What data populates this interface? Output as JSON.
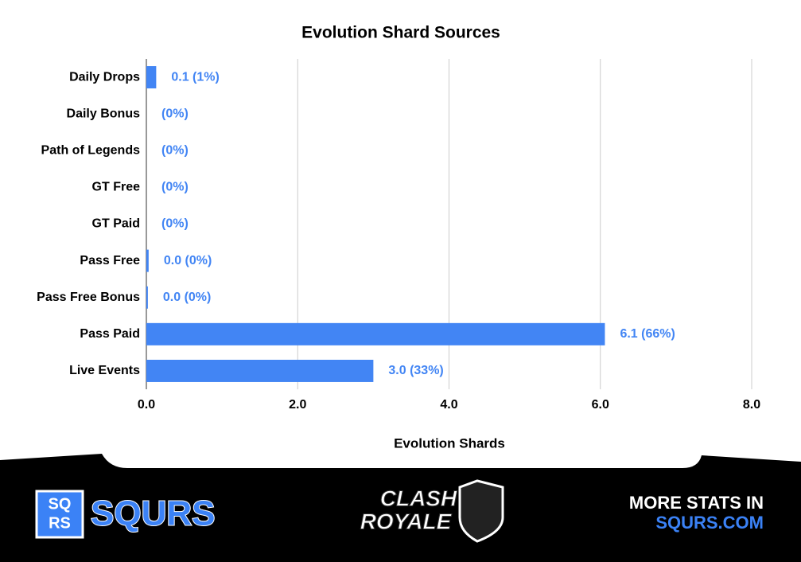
{
  "chart_data": {
    "type": "barh",
    "title": "Evolution Shard Sources",
    "categories": [
      "Daily Drops",
      "Daily Bonus",
      "Path of Legends",
      "GT Free",
      "GT Paid",
      "Pass Free",
      "Pass Free Bonus",
      "Pass Paid",
      "Live Events"
    ],
    "values": [
      0.13,
      0,
      0,
      0,
      0,
      0.03,
      0.02,
      6.06,
      3.0
    ],
    "value_labels": [
      "0.1 (1%)",
      "(0%)",
      "(0%)",
      "(0%)",
      "(0%)",
      "0.0 (0%)",
      "0.0 (0%)",
      "6.1 (66%)",
      "3.0 (33%)"
    ],
    "color": "#4285f4",
    "xlabel": "Evolution Shards",
    "xlim": [
      0,
      8
    ],
    "xticks": [
      {
        "value": 0,
        "label": "0.0"
      },
      {
        "value": 2,
        "label": "2.0"
      },
      {
        "value": 4,
        "label": "4.0"
      },
      {
        "value": 6,
        "label": "6.0"
      },
      {
        "value": 8,
        "label": "8.0"
      }
    ],
    "grid": true
  },
  "footer": {
    "brand_box_top": "SQ",
    "brand_box_bottom": "RS",
    "brand": "SQURS",
    "game_top": "CLASH",
    "game_bottom": "ROYALE",
    "promo_top": "MORE STATS IN",
    "promo_bottom": "SQURS.COM"
  }
}
